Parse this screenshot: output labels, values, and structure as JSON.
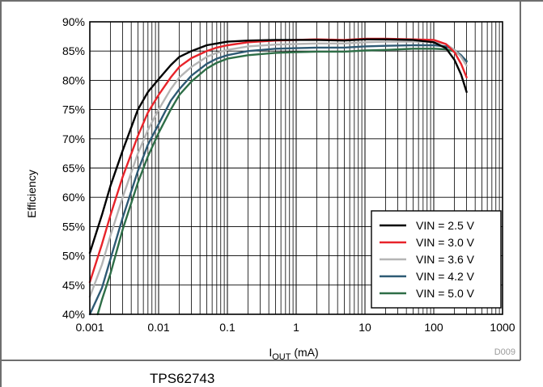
{
  "chart_data": {
    "type": "line",
    "title": "",
    "xlabel": "I",
    "xlabel_sub": "OUT",
    "xlabel_unit": " (mA)",
    "ylabel": "Efficiency",
    "x_scale": "log",
    "xlim": [
      0.001,
      1000
    ],
    "ylim": [
      40,
      90
    ],
    "x_ticks": [
      0.001,
      0.01,
      0.1,
      1,
      10,
      100,
      1000
    ],
    "x_tick_labels": [
      "0.001",
      "0.01",
      "0.1",
      "1",
      "10",
      "100",
      "1000"
    ],
    "y_ticks": [
      40,
      45,
      50,
      55,
      60,
      65,
      70,
      75,
      80,
      85,
      90
    ],
    "y_tick_labels": [
      "40%",
      "45%",
      "50%",
      "55%",
      "60%",
      "65%",
      "70%",
      "75%",
      "80%",
      "85%",
      "90%"
    ],
    "grid": true,
    "legend_position": "bottom-right",
    "series": [
      {
        "name": "VIN = 2.5 V",
        "color": "#000000",
        "x": [
          0.001,
          0.0015,
          0.002,
          0.003,
          0.005,
          0.007,
          0.01,
          0.015,
          0.02,
          0.03,
          0.05,
          0.07,
          0.1,
          0.2,
          0.5,
          1,
          2,
          5,
          10,
          20,
          50,
          100,
          150,
          200,
          250,
          300
        ],
        "y": [
          50.5,
          57,
          62,
          68,
          75,
          78,
          80.2,
          82.6,
          84,
          85,
          86,
          86.3,
          86.6,
          86.8,
          86.9,
          86.9,
          86.9,
          86.8,
          87,
          87,
          86.9,
          86.5,
          85.5,
          83.5,
          81,
          78
        ]
      },
      {
        "name": "VIN = 3.0 V",
        "color": "#e8232a",
        "x": [
          0.001,
          0.0015,
          0.002,
          0.003,
          0.005,
          0.007,
          0.01,
          0.015,
          0.02,
          0.03,
          0.05,
          0.07,
          0.1,
          0.2,
          0.5,
          1,
          2,
          5,
          10,
          20,
          50,
          100,
          150,
          200,
          250,
          300
        ],
        "y": [
          45.5,
          52,
          57,
          63.5,
          70.5,
          74.5,
          77.5,
          80.5,
          82.3,
          83.8,
          85,
          85.6,
          86,
          86.5,
          86.8,
          86.9,
          87,
          86.9,
          87.1,
          87.1,
          87,
          86.9,
          86.2,
          84.8,
          82.8,
          80.5
        ]
      },
      {
        "name": "VIN = 3.6 V",
        "color": "#b5b5b5",
        "x": [
          0.001,
          0.0015,
          0.002,
          0.003,
          0.005,
          0.007,
          0.01,
          0.015,
          0.02,
          0.03,
          0.05,
          0.07,
          0.1,
          0.2,
          0.5,
          1,
          2,
          5,
          10,
          20,
          50,
          100,
          150,
          200,
          250,
          300
        ],
        "y": [
          43,
          48.5,
          53.5,
          60,
          67.5,
          71.5,
          75,
          78.5,
          80.5,
          82.3,
          84,
          84.7,
          85.2,
          85.8,
          86.1,
          86.2,
          86.3,
          86.3,
          86.5,
          86.6,
          86.6,
          86.6,
          86.2,
          85.2,
          84,
          82.5
        ]
      },
      {
        "name": "VIN = 4.2 V",
        "color": "#2e5a74",
        "x": [
          0.001,
          0.0015,
          0.002,
          0.003,
          0.005,
          0.007,
          0.01,
          0.015,
          0.02,
          0.03,
          0.05,
          0.07,
          0.1,
          0.2,
          0.5,
          1,
          2,
          5,
          10,
          20,
          50,
          100,
          150,
          200,
          250,
          300
        ],
        "y": [
          40,
          44.5,
          49.5,
          56.5,
          64.5,
          69,
          72.5,
          76.5,
          78.5,
          80.8,
          82.8,
          83.7,
          84.3,
          85,
          85.4,
          85.5,
          85.6,
          85.6,
          85.8,
          85.9,
          86,
          86,
          85.8,
          85.2,
          84.3,
          83.2
        ]
      },
      {
        "name": "VIN = 5.0 V",
        "color": "#2e6e47",
        "x": [
          0.0013,
          0.0015,
          0.002,
          0.003,
          0.005,
          0.007,
          0.01,
          0.015,
          0.02,
          0.03,
          0.05,
          0.07,
          0.1,
          0.2,
          0.5,
          1,
          2,
          5,
          10,
          20,
          50,
          100,
          150,
          200,
          250,
          300
        ],
        "y": [
          40,
          42.5,
          47,
          54.5,
          62.5,
          67,
          71,
          75,
          77.5,
          79.8,
          82,
          83,
          83.7,
          84.3,
          84.7,
          84.8,
          84.9,
          84.9,
          85.1,
          85.2,
          85.4,
          85.4,
          85.3,
          84.9,
          84.2,
          83.3
        ]
      }
    ]
  },
  "figure_id": "D009",
  "caption": "TPS62743"
}
